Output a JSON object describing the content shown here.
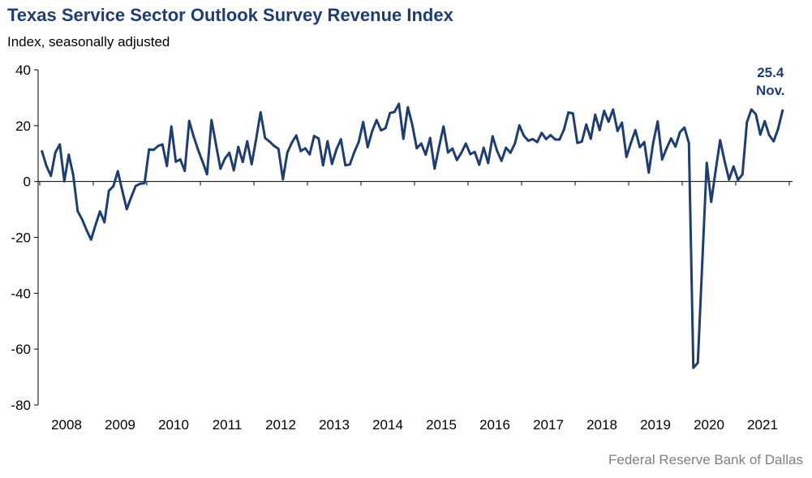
{
  "chart_data": {
    "type": "line",
    "title": "Texas Service Sector Outlook Survey Revenue Index",
    "subtitle": "Index, seasonally adjusted",
    "source": "Federal Reserve Bank of Dallas",
    "xlabel": "",
    "ylabel": "",
    "ylim": [
      -80,
      40
    ],
    "yticks": [
      -80,
      -60,
      -40,
      -20,
      0,
      20,
      40
    ],
    "x_start": "2008-01",
    "x_end": "2021-11",
    "x_tick_labels": [
      "2008",
      "2009",
      "2010",
      "2011",
      "2012",
      "2013",
      "2014",
      "2015",
      "2016",
      "2017",
      "2018",
      "2019",
      "2020",
      "2021"
    ],
    "grid": false,
    "legend": "none",
    "line_color": "#1f3d6e",
    "annotation": {
      "value": "25.4",
      "label": "Nov."
    },
    "series": [
      {
        "values": [
          10.8,
          5.6,
          2.0,
          10.4,
          13.3,
          0.1,
          9.6,
          2.4,
          -10.6,
          -13.6,
          -17.4,
          -20.8,
          -15.6,
          -10.7,
          -14.6,
          -3.3,
          -1.7,
          3.7,
          -3.3,
          -9.9,
          -5.6,
          -1.6,
          -0.8,
          -0.6,
          11.5,
          11.3,
          12.7,
          13.3,
          5.6,
          19.7,
          7.1,
          7.9,
          3.8,
          21.7,
          16.1,
          11.3,
          7.1,
          2.6,
          22.0,
          13.3,
          4.6,
          8.2,
          10.3,
          4.0,
          12.4,
          7.0,
          14.4,
          6.2,
          15.2,
          24.8,
          15.6,
          14.3,
          12.8,
          11.7,
          0.8,
          10.4,
          13.9,
          16.5,
          10.9,
          11.9,
          9.7,
          16.3,
          15.4,
          5.8,
          14.4,
          6.3,
          11.5,
          15.1,
          5.8,
          6.1,
          10.5,
          14.2,
          21.3,
          12.3,
          18.0,
          22.0,
          18.3,
          19.1,
          24.5,
          24.9,
          27.8,
          15.3,
          26.6,
          20.3,
          11.9,
          13.6,
          9.6,
          15.6,
          4.6,
          12.4,
          19.7,
          10.4,
          11.8,
          7.7,
          10.3,
          13.6,
          9.8,
          10.6,
          6.0,
          12.1,
          6.6,
          16.2,
          11.0,
          7.4,
          12.1,
          10.3,
          13.6,
          20.1,
          16.4,
          14.6,
          15.2,
          14.1,
          17.4,
          15.2,
          16.6,
          15.1,
          15.0,
          18.6,
          24.7,
          24.4,
          13.8,
          14.3,
          20.4,
          15.3,
          23.9,
          18.4,
          25.3,
          21.4,
          25.8,
          18.1,
          21.1,
          8.8,
          13.8,
          18.4,
          12.3,
          14.1,
          3.2,
          13.9,
          21.5,
          7.9,
          11.9,
          15.4,
          12.5,
          17.7,
          19.3,
          13.8,
          -66.7,
          -64.9,
          -28.9,
          6.7,
          -7.3,
          4.0,
          14.8,
          7.3,
          0.7,
          5.4,
          0.6,
          2.5,
          21.2,
          25.8,
          24.1,
          16.8,
          21.6,
          16.6,
          14.4,
          18.9,
          25.4
        ]
      }
    ]
  }
}
